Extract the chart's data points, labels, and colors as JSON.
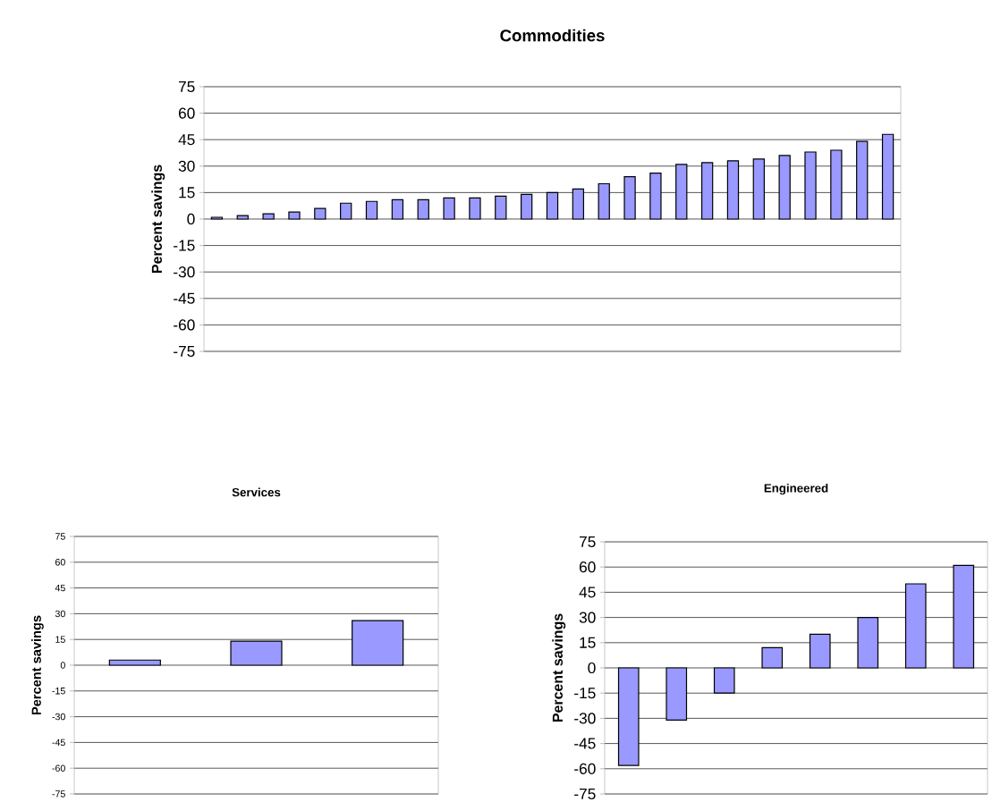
{
  "chart_data": [
    {
      "type": "bar",
      "title": "Commodities",
      "ylabel": "Percent savings",
      "categories": [
        null,
        null,
        null,
        null,
        null,
        null,
        null,
        null,
        null,
        null,
        null,
        null,
        null,
        null,
        null,
        null,
        null,
        null,
        null,
        null,
        null,
        null,
        null,
        null,
        null,
        null,
        null
      ],
      "values": [
        1,
        2,
        3,
        4,
        6,
        9,
        10,
        11,
        11,
        12,
        12,
        13,
        14,
        15,
        17,
        20,
        24,
        26,
        31,
        32,
        33,
        34,
        36,
        38,
        39,
        44,
        48
      ],
      "color": "#9999ff",
      "ylim": [
        -75,
        75
      ],
      "yticks": [
        -75,
        -60,
        -45,
        -30,
        -15,
        0,
        15,
        30,
        45,
        60,
        75
      ],
      "grid": "y"
    },
    {
      "type": "bar",
      "title": "Services",
      "ylabel": "Percent savings",
      "categories": [
        null,
        null,
        null
      ],
      "values": [
        3,
        14,
        26
      ],
      "color": "#9999ff",
      "ylim": [
        -75,
        75
      ],
      "yticks": [
        -75,
        -60,
        -45,
        -30,
        -15,
        0,
        15,
        30,
        45,
        60,
        75
      ],
      "grid": "y"
    },
    {
      "type": "bar",
      "title": "Engineered",
      "ylabel": "Percent savings",
      "categories": [
        null,
        null,
        null,
        null,
        null,
        null,
        null,
        null
      ],
      "values": [
        -58,
        -31,
        -15,
        12,
        20,
        30,
        50,
        61
      ],
      "color": "#9999ff",
      "ylim": [
        -75,
        75
      ],
      "yticks": [
        -75,
        -60,
        -45,
        -30,
        -15,
        0,
        15,
        30,
        45,
        60,
        75
      ],
      "grid": "y"
    }
  ]
}
